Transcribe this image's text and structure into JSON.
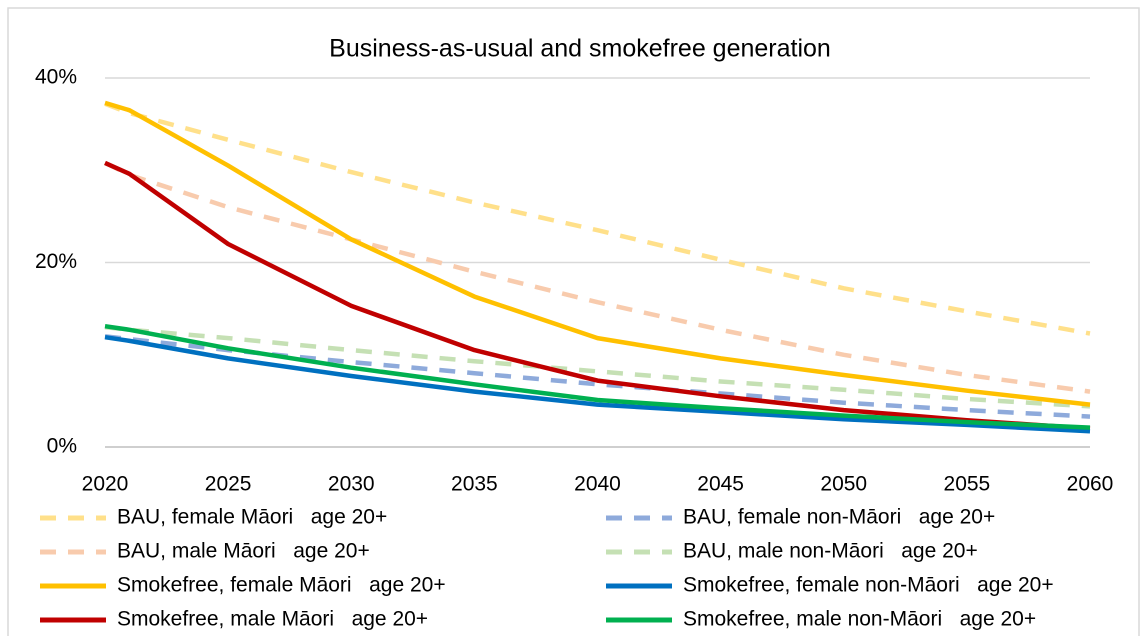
{
  "chart_data": {
    "type": "line",
    "title": "Business-as-usual and smokefree generation",
    "x": [
      2020,
      2021,
      2025,
      2030,
      2035,
      2040,
      2045,
      2050,
      2055,
      2060
    ],
    "xlim": [
      2020,
      2060
    ],
    "xticks": [
      2020,
      2025,
      2030,
      2035,
      2040,
      2045,
      2050,
      2055,
      2060
    ],
    "ylim": [
      0,
      40
    ],
    "yticks": [
      {
        "value": 0,
        "label": "0%"
      },
      {
        "value": 20,
        "label": "20%"
      },
      {
        "value": 40,
        "label": "40%"
      }
    ],
    "grid": true,
    "legend": "bottom",
    "series": [
      {
        "name": "BAU, female Māori   age 20+",
        "color": "#ffe08a",
        "style": "dashed",
        "values": [
          37.2,
          36.2,
          33.3,
          29.8,
          26.5,
          23.5,
          20.3,
          17.2,
          14.7,
          12.3
        ]
      },
      {
        "name": "BAU, male Māori   age 20+",
        "color": "#f8cbad",
        "style": "dashed",
        "values": [
          30.8,
          29.5,
          26,
          22.5,
          19,
          15.7,
          12.7,
          10,
          7.8,
          6
        ]
      },
      {
        "name": "Smokefree, female Māori   age 20+",
        "color": "#ffc000",
        "style": "solid",
        "values": [
          37.3,
          36.5,
          30.5,
          22.5,
          16.3,
          11.8,
          9.6,
          7.8,
          6.1,
          4.6
        ]
      },
      {
        "name": "Smokefree, male Māori   age 20+",
        "color": "#c00000",
        "style": "solid",
        "values": [
          30.8,
          29.6,
          22,
          15.3,
          10.5,
          7.2,
          5.5,
          4,
          2.9,
          2
        ]
      },
      {
        "name": "BAU, female non-Māori   age 20+",
        "color": "#8eaadb",
        "style": "dashed",
        "values": [
          12,
          11.7,
          10.5,
          9.2,
          8,
          6.8,
          5.8,
          4.8,
          4,
          3.3
        ]
      },
      {
        "name": "BAU, male non-Māori   age 20+",
        "color": "#c5e0b4",
        "style": "dashed",
        "values": [
          13,
          12.7,
          11.8,
          10.5,
          9.3,
          8.2,
          7.1,
          6.2,
          5.2,
          4.4
        ]
      },
      {
        "name": "Smokefree, female non-Māori   age 20+",
        "color": "#0070c0",
        "style": "solid",
        "values": [
          11.9,
          11.5,
          9.6,
          7.7,
          6,
          4.6,
          3.8,
          3,
          2.4,
          1.7
        ]
      },
      {
        "name": "Smokefree, male non-Māori   age 20+",
        "color": "#00b050",
        "style": "solid",
        "values": [
          13.1,
          12.7,
          10.7,
          8.6,
          6.8,
          5.1,
          4.2,
          3.4,
          2.7,
          2.1
        ]
      }
    ]
  }
}
